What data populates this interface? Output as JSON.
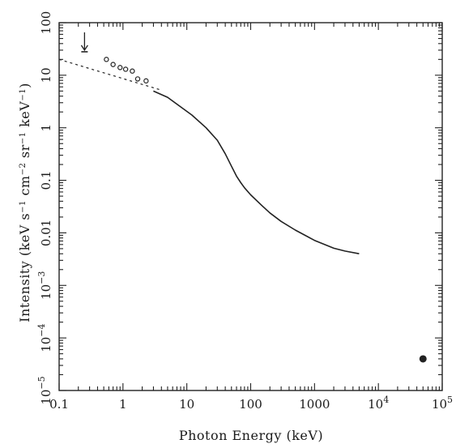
{
  "chart_data": {
    "type": "line",
    "xlabel": "Photon Energy (keV)",
    "ylabel_parts": [
      {
        "t": "Intensity (keV s"
      },
      {
        "t": "−1",
        "sup": true
      },
      {
        "t": " cm"
      },
      {
        "t": "−2",
        "sup": true
      },
      {
        "t": " sr"
      },
      {
        "t": "−1",
        "sup": true
      },
      {
        "t": " keV"
      },
      {
        "t": "−1",
        "sup": true
      },
      {
        "t": ")"
      }
    ],
    "x_scale": "log",
    "y_scale": "log",
    "xlim": [
      0.1,
      100000
    ],
    "ylim": [
      1e-05,
      100
    ],
    "grid": false,
    "legend": "none",
    "x_ticks": [
      {
        "v": 0.1,
        "base": "0.1"
      },
      {
        "v": 1,
        "base": "1"
      },
      {
        "v": 10,
        "base": "10"
      },
      {
        "v": 100,
        "base": "100"
      },
      {
        "v": 1000,
        "base": "1000"
      },
      {
        "v": 10000,
        "base": "10",
        "exp": "4"
      },
      {
        "v": 100000,
        "base": "10",
        "exp": "5"
      }
    ],
    "y_ticks": [
      {
        "v": 100,
        "base": "100"
      },
      {
        "v": 10,
        "base": "10"
      },
      {
        "v": 1,
        "base": "1"
      },
      {
        "v": 0.1,
        "base": "0.1"
      },
      {
        "v": 0.01,
        "base": "0.01"
      },
      {
        "v": 0.001,
        "base": "10",
        "exp": "−3"
      },
      {
        "v": 0.0001,
        "base": "10",
        "exp": "−4"
      },
      {
        "v": 1e-05,
        "base": "10",
        "exp": "−5"
      }
    ],
    "series": [
      {
        "style": "solid",
        "x": [
          3,
          5,
          8,
          12,
          20,
          30,
          40,
          50,
          60,
          70,
          80,
          100,
          150,
          200,
          300,
          500,
          1000,
          2000,
          3000,
          5000
        ],
        "y": [
          5.0,
          3.8,
          2.5,
          1.75,
          1.0,
          0.58,
          0.32,
          0.185,
          0.12,
          0.09,
          0.072,
          0.053,
          0.033,
          0.024,
          0.0165,
          0.0113,
          0.0072,
          0.0051,
          0.0045,
          0.004
        ]
      },
      {
        "style": "dashed",
        "x": [
          0.1,
          4
        ],
        "y": [
          20,
          5.2
        ]
      },
      {
        "style": "open-circle",
        "x": [
          0.55,
          0.7,
          0.9,
          1.1,
          1.4,
          1.7,
          2.3
        ],
        "y": [
          20,
          16,
          14,
          13,
          12,
          8.5,
          7.8
        ]
      },
      {
        "style": "filled-circle",
        "x": [
          50000
        ],
        "y": [
          4e-05
        ]
      },
      {
        "style": "upper-limit",
        "x": [
          0.25
        ],
        "y": [
          30
        ]
      }
    ]
  }
}
